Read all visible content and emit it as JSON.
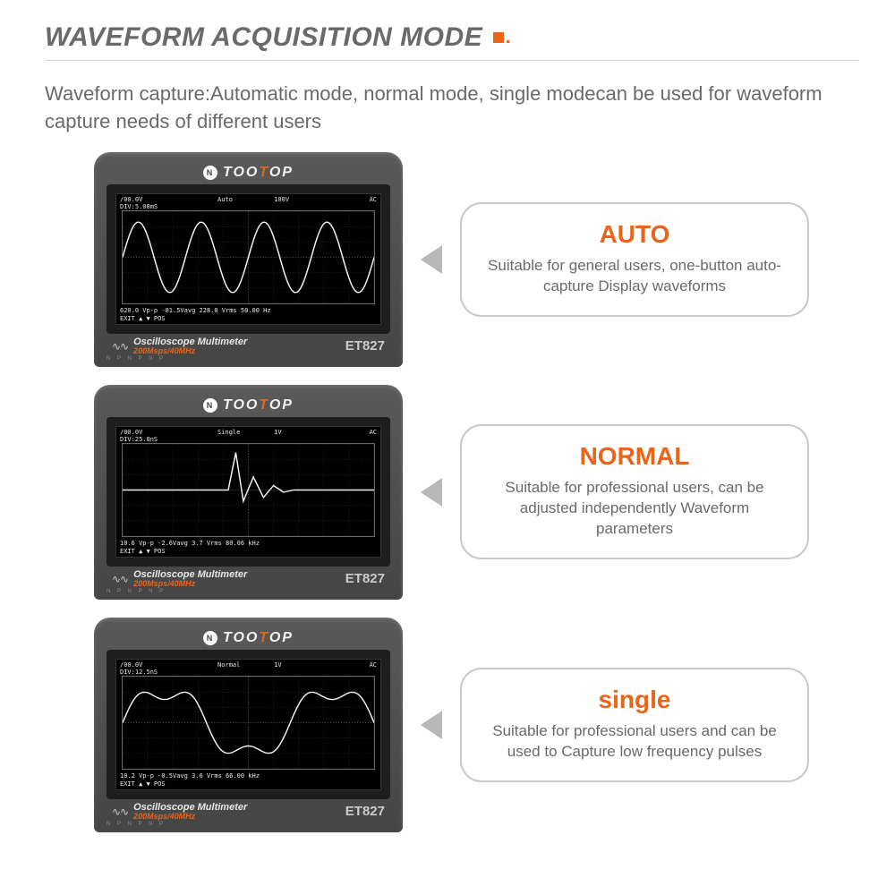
{
  "header": {
    "title": "WAVEFORM ACQUISITION MODE",
    "accent_color": "#e8651a"
  },
  "subtitle": "Waveform capture:Automatic mode, normal mode, single modecan be used for waveform capture needs of different users",
  "device": {
    "brand_pre": "TOO",
    "brand_accent": "T",
    "brand_post": "OP",
    "footer_title": "Oscilloscope Multimeter",
    "footer_spec": "200Msps/40MHz",
    "model": "ET827",
    "screen_colors": {
      "bg": "#000000",
      "grid": "#555555",
      "trace": "#f0f0f0",
      "text": "#e8e8e8"
    }
  },
  "modes": [
    {
      "card_title": "AUTO",
      "card_desc": "Suitable for general users, one-button auto-capture Display waveforms",
      "screen": {
        "top_left1": "/00.0V",
        "top_left2": "DIV:5.00mS",
        "mode_label": "Auto",
        "scale": "100V",
        "right": "AC",
        "bottom_vals": "620.0 Vp-p -81.5Vavg  228.0 Vrms 50.00 Hz",
        "bottom_nav": "EXIT     ▲     ▼     POS",
        "waveform_type": "sine",
        "cycles": 4,
        "amplitude": 0.85
      }
    },
    {
      "card_title": "NORMAL",
      "card_desc": "Suitable for professional users, can be adjusted independently Waveform parameters",
      "screen": {
        "top_left1": "/00.0V",
        "top_left2": "DIV:25.0nS",
        "mode_label": "Single",
        "scale": "1V",
        "right": "AC",
        "bottom_vals": "10.6 Vp-p -2.6Vavg  3.7 Vrms 80.06 kHz",
        "bottom_nav": "EXIT     ▲     ▼     POS",
        "waveform_type": "spike",
        "cycles": 1,
        "amplitude": 0.9
      }
    },
    {
      "card_title": "single",
      "card_desc": "Suitable for professional users and can be used to Capture low frequency pulses",
      "screen": {
        "top_left1": "/00.0V",
        "top_left2": "DIV:12.5nS",
        "mode_label": "Normal",
        "scale": "1V",
        "right": "AC",
        "bottom_vals": "10.2 Vp-p -0.5Vavg  3.6 Vrms 66.00 kHz",
        "bottom_nav": "EXIT     ▲     ▼     POS",
        "waveform_type": "lowfreq",
        "cycles": 1.5,
        "amplitude": 0.8
      }
    }
  ]
}
